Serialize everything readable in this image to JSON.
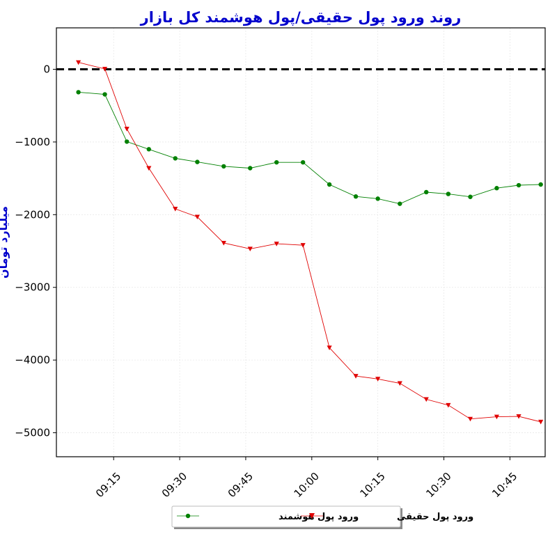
{
  "colors": {
    "title": "#0000cc",
    "smart_money": "#008000",
    "real_money": "#e00000",
    "zero_line": "#000000",
    "grid": "#e8e8e8"
  },
  "chart_data": {
    "type": "line",
    "title": "روند ورود پول حقیقی/پول هوشمند کل بازار",
    "xlabel": "",
    "ylabel": "میلیارد تومان",
    "x_ticks": [
      "09:15",
      "09:30",
      "09:45",
      "10:00",
      "10:15",
      "10:30",
      "10:45"
    ],
    "y_ticks": [
      "0",
      "−1000",
      "−2000",
      "−3000",
      "−4000",
      "−5000"
    ],
    "ylim": [
      -5330,
      570
    ],
    "xlim": [
      "09:02",
      "10:53"
    ],
    "grid": true,
    "legend_position": "bottom-center",
    "reference_line": {
      "y": 0,
      "style": "dashed"
    },
    "x": [
      "09:07",
      "09:13",
      "09:18",
      "09:23",
      "09:29",
      "09:34",
      "09:40",
      "09:46",
      "09:52",
      "09:58",
      "10:04",
      "10:10",
      "10:15",
      "10:20",
      "10:26",
      "10:31",
      "10:36",
      "10:42",
      "10:47",
      "10:52"
    ],
    "series": [
      {
        "name": "ورود پول هوشمند",
        "marker": "circle",
        "values": [
          -315,
          -345,
          -995,
          -1100,
          -1225,
          -1275,
          -1335,
          -1360,
          -1280,
          -1280,
          -1585,
          -1750,
          -1780,
          -1850,
          -1690,
          -1715,
          -1755,
          -1635,
          -1595,
          -1585
        ]
      },
      {
        "name": "ورود پول حقیقی",
        "marker": "triangle-down",
        "values": [
          95,
          5,
          -820,
          -1360,
          -1920,
          -2030,
          -2390,
          -2470,
          -2400,
          -2420,
          -3830,
          -4220,
          -4260,
          -4320,
          -4540,
          -4620,
          -4810,
          -4780,
          -4775,
          -4850
        ]
      }
    ]
  }
}
